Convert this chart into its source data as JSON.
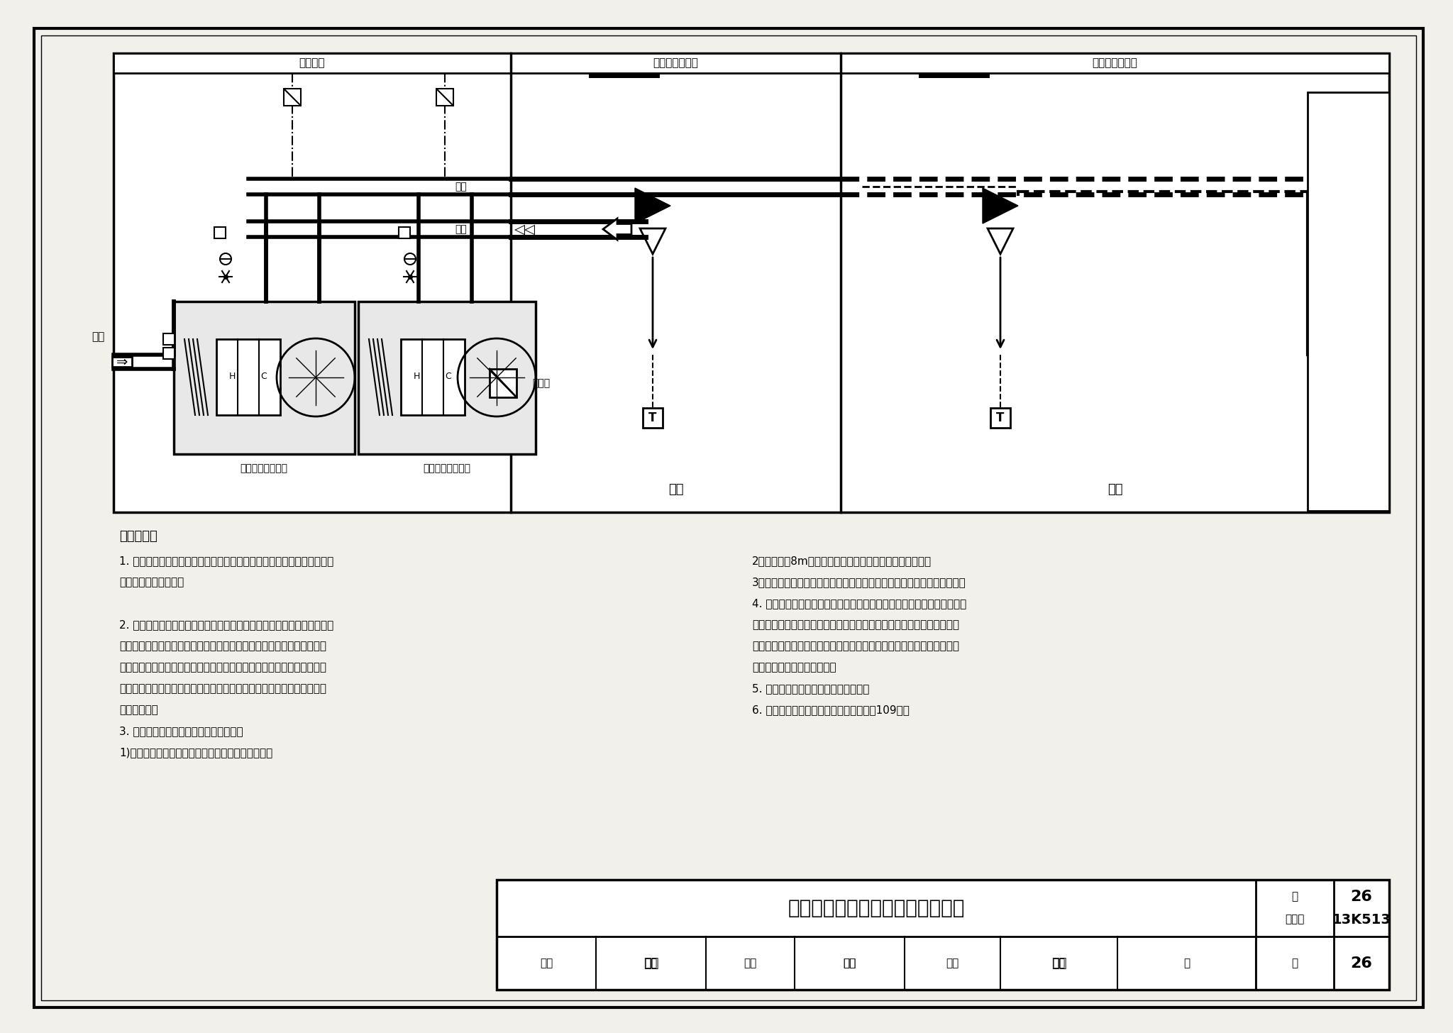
{
  "page_bg": "#f2f0ea",
  "title_text": "带冷热型末端的单风道系统原理图",
  "figure_number_label": "图集号",
  "figure_number_value": "13K513",
  "page_label": "页",
  "page_number": "26",
  "diagram_machineroom": "空调机房",
  "label_inner_zone": "内区单风道末端",
  "label_outer_zone": "外区单风道末端",
  "label_send": "送风",
  "label_return": "回风",
  "label_fresh": "新风",
  "label_inner": "内区",
  "label_outer": "外区",
  "label_freq": "变频器",
  "label_inner_unit": "内区空气处理机组",
  "label_outer_unit": "外区空气处理机组",
  "principle_title": "原理说明：",
  "principle_left": [
    "1. 全部为不带加热器的单冷型末端组成的单风道变风量系统最为简单，全",
    "年供冷，无供热功能。",
    "",
    "2. 仅带冷热型末端的单风道系统空气处理机组根据负荷需要送出冷风或热",
    "风，形成供冷、供热两种工况。系统采用的冷热型末端与单冷型末端机械",
    "构造一样，只是冷、热工况下风量调节规律不同。系统的优点是消除了水",
    "管的隐患和再热损失；缺点是外区供热要按朝向划分系统，会增加初投资",
    "和机房空间。",
    "3. 仅带冷热型末端的单风道系统适用于：",
    "1)冬季需要供暖的空调外区，夏季供冷，冬季供热。"
  ],
  "principle_right": [
    "2）进深小于8m的全外区空调房间，夏季供冷，冬季供热。",
    "3）冬季需要供暖，但不允许水管进入的空调区域，夏季供冷、冬季供热。",
    "4. 仅带冷热型末端的单风道系统流程：回风和新风混合，经空气处理机组",
    "过滤与热湿处理后送风。系统根据负荷需求，冷负荷时送冷风；热负荷时",
    "送热风。冷热型末端根据温控区负荷要求，供冷时正比例、供热时反比例",
    "调节送风量，维持室内温度。",
    "5. 本图为内外区分设空调系统的情况。",
    "6. 带冷热型末端的单风道系统平面图见第109页。"
  ]
}
